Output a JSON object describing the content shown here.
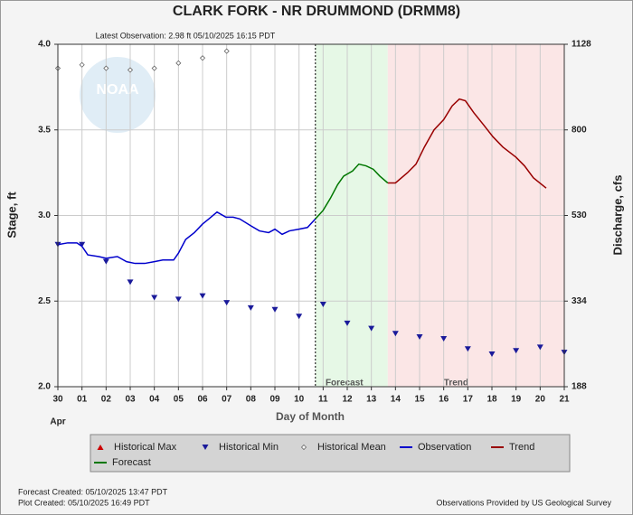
{
  "chart_data": {
    "type": "hydrograph",
    "title": "CLARK FORK - NR DRUMMOND  (DRMM8)",
    "subtitle": "Latest Observation: 2.98 ft 05/10/2025 16:15 PDT",
    "watermark": "NOAA",
    "x_label": "Day of Month",
    "x_sublabel": "Apr",
    "y_label": "Stage, ft",
    "y2_label": "Discharge, cfs",
    "xlim": [
      0,
      21
    ],
    "xticks": [
      {
        "value": 0,
        "label": "30"
      },
      {
        "value": 1,
        "label": "01"
      },
      {
        "value": 2,
        "label": "02"
      },
      {
        "value": 3,
        "label": "03"
      },
      {
        "value": 4,
        "label": "04"
      },
      {
        "value": 5,
        "label": "05"
      },
      {
        "value": 6,
        "label": "06"
      },
      {
        "value": 7,
        "label": "07"
      },
      {
        "value": 8,
        "label": "08"
      },
      {
        "value": 9,
        "label": "09"
      },
      {
        "value": 10,
        "label": "10"
      },
      {
        "value": 11,
        "label": "11"
      },
      {
        "value": 12,
        "label": "12"
      },
      {
        "value": 13,
        "label": "13"
      },
      {
        "value": 14,
        "label": "14"
      },
      {
        "value": 15,
        "label": "15"
      },
      {
        "value": 16,
        "label": "16"
      },
      {
        "value": 17,
        "label": "17"
      },
      {
        "value": 18,
        "label": "18"
      },
      {
        "value": 19,
        "label": "19"
      },
      {
        "value": 20,
        "label": "20"
      },
      {
        "value": 21,
        "label": "21"
      }
    ],
    "ylim": [
      2,
      4
    ],
    "yticks": [
      {
        "value": 2,
        "label": "2.0"
      },
      {
        "value": 2.5,
        "label": "2.5"
      },
      {
        "value": 3,
        "label": "3.0"
      },
      {
        "value": 3.5,
        "label": "3.5"
      },
      {
        "value": 4,
        "label": "4.0"
      }
    ],
    "y2ticks": [
      188,
      334,
      530,
      800,
      1128
    ],
    "grid": true,
    "now_x": 10.68,
    "regions": [
      {
        "label": "Forecast",
        "x": [
          10.68,
          13.68
        ],
        "color": "#e6f8e6"
      },
      {
        "label": "Trend",
        "x": [
          13.68,
          21
        ],
        "color": "#fbe6e6"
      }
    ],
    "series": [
      {
        "name": "Historical Max",
        "color": "#cc0000",
        "marker": "triangle-up",
        "x": [],
        "values": []
      },
      {
        "name": "Historical Min",
        "color": "#1a1a9a",
        "marker": "triangle-down",
        "x": [
          0,
          1,
          2,
          3,
          4,
          5,
          6,
          7,
          8,
          9,
          10,
          11,
          12,
          13,
          14,
          15,
          16,
          17,
          18,
          19,
          20,
          21
        ],
        "values": [
          2.83,
          2.83,
          2.73,
          2.61,
          2.52,
          2.51,
          2.53,
          2.49,
          2.46,
          2.45,
          2.41,
          2.48,
          2.37,
          2.34,
          2.31,
          2.29,
          2.28,
          2.22,
          2.19,
          2.21,
          2.23,
          2.2
        ]
      },
      {
        "name": "Historical Mean",
        "color": "#666666",
        "marker": "diamond",
        "x": [
          0,
          1,
          2,
          3,
          4,
          5,
          6,
          7
        ],
        "values": [
          3.86,
          3.88,
          3.86,
          3.85,
          3.86,
          3.89,
          3.92,
          3.96
        ]
      },
      {
        "name": "Observation",
        "color": "#0000cc",
        "marker": "line",
        "x": [
          0,
          0.41,
          0.79,
          1,
          1.24,
          1.7,
          2,
          2.47,
          2.85,
          3.2,
          3.6,
          4,
          4.35,
          4.8,
          5,
          5.3,
          5.66,
          6,
          6.26,
          6.6,
          6.97,
          7.27,
          7.54,
          8,
          8.36,
          8.74,
          9,
          9.3,
          9.6,
          10,
          10.35,
          10.68
        ],
        "values": [
          2.83,
          2.84,
          2.84,
          2.82,
          2.77,
          2.76,
          2.75,
          2.76,
          2.73,
          2.72,
          2.72,
          2.73,
          2.74,
          2.74,
          2.78,
          2.86,
          2.9,
          2.95,
          2.98,
          3.02,
          2.99,
          2.99,
          2.98,
          2.94,
          2.91,
          2.9,
          2.92,
          2.89,
          2.91,
          2.92,
          2.93,
          2.98
        ]
      },
      {
        "name": "Trend",
        "color": "#990000",
        "marker": "line",
        "x": [
          13.68,
          14,
          14.5,
          14.85,
          15.2,
          15.6,
          16,
          16.35,
          16.65,
          16.9,
          17.25,
          17.65,
          18.04,
          18.45,
          19,
          19.35,
          19.72,
          20.25
        ],
        "values": [
          3.19,
          3.19,
          3.25,
          3.3,
          3.4,
          3.5,
          3.56,
          3.64,
          3.68,
          3.67,
          3.6,
          3.53,
          3.46,
          3.4,
          3.34,
          3.29,
          3.22,
          3.16
        ]
      },
      {
        "name": "Forecast",
        "color": "#007700",
        "marker": "line",
        "x": [
          10.68,
          11,
          11.3,
          11.6,
          11.85,
          12.22,
          12.48,
          12.78,
          13.08,
          13.35,
          13.68
        ],
        "values": [
          2.98,
          3.03,
          3.1,
          3.18,
          3.23,
          3.26,
          3.3,
          3.29,
          3.27,
          3.23,
          3.19
        ]
      }
    ],
    "footer_left": [
      "Forecast Created: 05/10/2025 13:47 PDT",
      "Plot Created: 05/10/2025 16:49 PDT"
    ],
    "footer_right": "Observations Provided by US Geological Survey"
  }
}
